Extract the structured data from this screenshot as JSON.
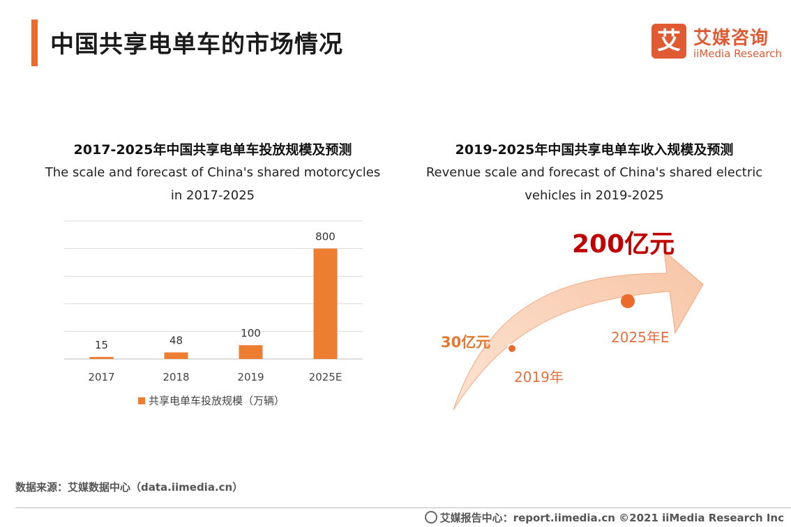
{
  "header": {
    "title": "中国共享电单车的市场情况",
    "logo": {
      "icon_char": "艾",
      "cn": "艾媒咨询",
      "en": "iiMedia Research"
    }
  },
  "chart_data": [
    {
      "type": "bar",
      "title": "2017-2025年中国共享电单车投放规模及预测",
      "subtitle_line1": "The scale and forecast of China's shared motorcycles",
      "subtitle_line2": "in 2017-2025",
      "categories": [
        "2017",
        "2018",
        "2019",
        "2025E"
      ],
      "series": [
        {
          "name": "共享电单车投放规模（万辆）",
          "values": [
            15,
            48,
            100,
            800
          ],
          "color": "#ed7d31"
        }
      ],
      "ylim": [
        0,
        1000
      ],
      "grid": true,
      "legend": "bottom"
    },
    {
      "type": "arrow-infographic",
      "title": "2019-2025年中国共享电单车收入规模及预测",
      "subtitle_line1": "Revenue scale and forecast of China's shared electric",
      "subtitle_line2": "vehicles in 2019-2025",
      "points": [
        {
          "year": "2019年",
          "value": 30,
          "value_label": "30亿元"
        },
        {
          "year": "2025年E",
          "value": 200,
          "value_label": "200亿元"
        }
      ],
      "colors": {
        "arrow": "#f7c5a6",
        "dot": "#ec6a2c",
        "big_label": "#c00000",
        "small_label": "#e3782f",
        "year_label": "#ea6e3c"
      }
    }
  ],
  "source": "数据来源：艾媒数据中心（data.iimedia.cn）",
  "footer": "艾媒报告中心：report.iimedia.cn    ©2021  iiMedia Research  Inc"
}
